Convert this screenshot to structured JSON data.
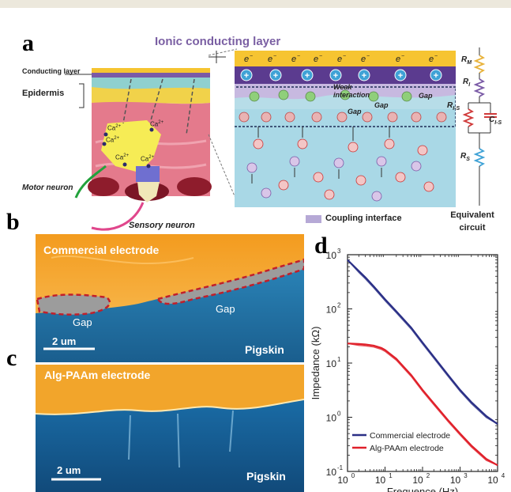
{
  "panel_a": {
    "label": "a",
    "title": "Ionic conducting layer",
    "conducting_layer_label": "Conducting layer",
    "epidermis_label": "Epidermis",
    "motor_neuron_label": "Motor neuron",
    "sensory_neuron_label": "Sensory neuron",
    "ion_label": "Ca",
    "ion_sup": "2+",
    "electron": "e",
    "weak_interaction": "Weak interaction",
    "gap": "Gap",
    "coupling_interface": "Coupling interface",
    "equivalent_circuit": [
      "Equivalent",
      "circuit"
    ],
    "circuit": {
      "rm": "R",
      "rm_sub": "M",
      "ri": "R",
      "ri_sub": "I",
      "ris": "R",
      "ris_sub": "I-S",
      "cis": "C",
      "cis_sub": "I-S",
      "rs": "R",
      "rs_sub": "S"
    },
    "colors": {
      "conducting": "#f6c431",
      "ionic_layer": "#7a5aa6",
      "tissue": "#a9d8e6",
      "coupling": "#b6a9d6"
    }
  },
  "panel_b": {
    "label": "b",
    "title": "Commercial electrode",
    "gap1": "Gap",
    "gap2": "Gap",
    "scale": "2 um",
    "tissue": "Pigskin"
  },
  "panel_c": {
    "label": "c",
    "title": "Alg-PAAm electrode",
    "scale": "2 um",
    "tissue": "Pigskin"
  },
  "panel_d": {
    "label": "d"
  },
  "chart_data": {
    "type": "line",
    "title": "",
    "xlabel": "Frequence (Hz)",
    "ylabel": "Impedance (kΩ)",
    "xscale": "log",
    "yscale": "log",
    "xlim": [
      1,
      10000
    ],
    "ylim": [
      0.1,
      1000
    ],
    "x_ticks": [
      {
        "v": 1,
        "b": "10",
        "e": "0"
      },
      {
        "v": 10,
        "b": "10",
        "e": "1"
      },
      {
        "v": 100,
        "b": "10",
        "e": "2"
      },
      {
        "v": 1000,
        "b": "10",
        "e": "3"
      },
      {
        "v": 10000,
        "b": "10",
        "e": "4"
      }
    ],
    "y_ticks": [
      {
        "v": 0.1,
        "b": "10",
        "e": "-1"
      },
      {
        "v": 1,
        "b": "10",
        "e": "0"
      },
      {
        "v": 10,
        "b": "10",
        "e": "1"
      },
      {
        "v": 100,
        "b": "10",
        "e": "2"
      },
      {
        "v": 1000,
        "b": "10",
        "e": "3"
      }
    ],
    "legend_position": "bottom-left",
    "series": [
      {
        "name": "Commercial electrode",
        "color": "#2a2f86",
        "x": [
          1,
          2,
          3,
          5,
          10,
          20,
          50,
          100,
          200,
          500,
          1000,
          2000,
          5000,
          10000
        ],
        "y": [
          800,
          500,
          380,
          260,
          150,
          90,
          45,
          24,
          13,
          5.8,
          3.2,
          1.9,
          1.05,
          0.75
        ]
      },
      {
        "name": "Alg-PAAm electrode",
        "color": "#e0202a",
        "x": [
          1,
          2,
          3,
          5,
          8,
          10,
          20,
          50,
          100,
          200,
          500,
          1000,
          2000,
          5000,
          10000
        ],
        "y": [
          23,
          22.5,
          22,
          21,
          19,
          17.5,
          12,
          6,
          3.2,
          1.8,
          0.85,
          0.5,
          0.3,
          0.17,
          0.13
        ]
      }
    ]
  }
}
